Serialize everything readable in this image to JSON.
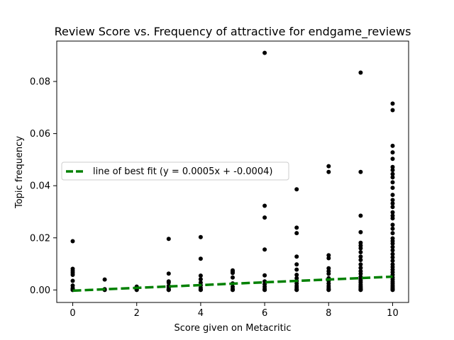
{
  "chart_data": {
    "type": "scatter",
    "title": "Review Score vs. Frequency of attractive for endgame_reviews",
    "xlabel": "Score given on Metacritic",
    "ylabel": "Topic frequency",
    "xlim": [
      -0.5,
      10.5
    ],
    "ylim": [
      -0.0048,
      0.0955
    ],
    "xticks": [
      0,
      2,
      4,
      6,
      8,
      10
    ],
    "yticks": [
      0.0,
      0.02,
      0.04,
      0.06,
      0.08
    ],
    "xtick_labels": [
      "0",
      "2",
      "4",
      "6",
      "8",
      "10"
    ],
    "ytick_labels": [
      "0.00",
      "0.02",
      "0.04",
      "0.06",
      "0.08"
    ],
    "grid": false,
    "legend_position": "center-left",
    "colors": {
      "points": "#000000",
      "fit_line": "#008000"
    },
    "series": [
      {
        "name": "",
        "kind": "scatter",
        "points": [
          [
            0,
            0.0187
          ],
          [
            0,
            0.0081
          ],
          [
            0,
            0.0073
          ],
          [
            0,
            0.0066
          ],
          [
            0,
            0.0058
          ],
          [
            0,
            0.0035
          ],
          [
            0,
            0.0017
          ],
          [
            0,
            0.0007
          ],
          [
            0,
            0.0002
          ],
          [
            0,
            0.0
          ],
          [
            0,
            0.0
          ],
          [
            0,
            0.0
          ],
          [
            1,
            0.004
          ],
          [
            1,
            0.0003
          ],
          [
            1,
            0.0
          ],
          [
            1,
            0.0
          ],
          [
            2,
            0.0013
          ],
          [
            2,
            0.0006
          ],
          [
            2,
            0.0002
          ],
          [
            2,
            0.0
          ],
          [
            2,
            0.0
          ],
          [
            3,
            0.0196
          ],
          [
            3,
            0.0063
          ],
          [
            3,
            0.0033
          ],
          [
            3,
            0.0028
          ],
          [
            3,
            0.0015
          ],
          [
            3,
            0.0008
          ],
          [
            3,
            0.0002
          ],
          [
            3,
            0.0
          ],
          [
            3,
            0.0
          ],
          [
            3,
            0.0
          ],
          [
            4,
            0.0203
          ],
          [
            4,
            0.012
          ],
          [
            4,
            0.0055
          ],
          [
            4,
            0.0041
          ],
          [
            4,
            0.0028
          ],
          [
            4,
            0.0018
          ],
          [
            4,
            0.0008
          ],
          [
            4,
            0.0002
          ],
          [
            4,
            0.0
          ],
          [
            4,
            0.0
          ],
          [
            5,
            0.0075
          ],
          [
            5,
            0.007
          ],
          [
            5,
            0.0065
          ],
          [
            5,
            0.0048
          ],
          [
            5,
            0.0025
          ],
          [
            5,
            0.0012
          ],
          [
            5,
            0.0004
          ],
          [
            5,
            0.0
          ],
          [
            5,
            0.0
          ],
          [
            6,
            0.091
          ],
          [
            6,
            0.0323
          ],
          [
            6,
            0.0278
          ],
          [
            6,
            0.0155
          ],
          [
            6,
            0.0056
          ],
          [
            6,
            0.0033
          ],
          [
            6,
            0.0022
          ],
          [
            6,
            0.0012
          ],
          [
            6,
            0.0004
          ],
          [
            6,
            0.0
          ],
          [
            6,
            0.0
          ],
          [
            7,
            0.0386
          ],
          [
            7,
            0.0239
          ],
          [
            7,
            0.0218
          ],
          [
            7,
            0.0128
          ],
          [
            7,
            0.0098
          ],
          [
            7,
            0.0078
          ],
          [
            7,
            0.0058
          ],
          [
            7,
            0.0045
          ],
          [
            7,
            0.0034
          ],
          [
            7,
            0.0025
          ],
          [
            7,
            0.0015
          ],
          [
            7,
            0.0008
          ],
          [
            7,
            0.0002
          ],
          [
            7,
            0.0
          ],
          [
            7,
            0.0
          ],
          [
            8,
            0.0475
          ],
          [
            8,
            0.0453
          ],
          [
            8,
            0.0133
          ],
          [
            8,
            0.0122
          ],
          [
            8,
            0.0083
          ],
          [
            8,
            0.0072
          ],
          [
            8,
            0.0062
          ],
          [
            8,
            0.0045
          ],
          [
            8,
            0.0035
          ],
          [
            8,
            0.0025
          ],
          [
            8,
            0.0015
          ],
          [
            8,
            0.0008
          ],
          [
            8,
            0.0003
          ],
          [
            8,
            0.0
          ],
          [
            8,
            0.0
          ],
          [
            9,
            0.0834
          ],
          [
            9,
            0.0453
          ],
          [
            9,
            0.0285
          ],
          [
            9,
            0.0222
          ],
          [
            9,
            0.0181
          ],
          [
            9,
            0.017
          ],
          [
            9,
            0.016
          ],
          [
            9,
            0.0145
          ],
          [
            9,
            0.0128
          ],
          [
            9,
            0.0115
          ],
          [
            9,
            0.0098
          ],
          [
            9,
            0.0085
          ],
          [
            9,
            0.0072
          ],
          [
            9,
            0.0062
          ],
          [
            9,
            0.005
          ],
          [
            9,
            0.0042
          ],
          [
            9,
            0.0035
          ],
          [
            9,
            0.0028
          ],
          [
            9,
            0.002
          ],
          [
            9,
            0.0014
          ],
          [
            9,
            0.0009
          ],
          [
            9,
            0.0005
          ],
          [
            9,
            0.0002
          ],
          [
            9,
            0.0
          ],
          [
            9,
            0.0
          ],
          [
            10,
            0.0715
          ],
          [
            10,
            0.069
          ],
          [
            10,
            0.0553
          ],
          [
            10,
            0.0528
          ],
          [
            10,
            0.0503
          ],
          [
            10,
            0.0472
          ],
          [
            10,
            0.046
          ],
          [
            10,
            0.0445
          ],
          [
            10,
            0.0432
          ],
          [
            10,
            0.0413
          ],
          [
            10,
            0.0392
          ],
          [
            10,
            0.0365
          ],
          [
            10,
            0.0345
          ],
          [
            10,
            0.0332
          ],
          [
            10,
            0.0318
          ],
          [
            10,
            0.0298
          ],
          [
            10,
            0.0285
          ],
          [
            10,
            0.0275
          ],
          [
            10,
            0.025
          ],
          [
            10,
            0.0235
          ],
          [
            10,
            0.0218
          ],
          [
            10,
            0.0198
          ],
          [
            10,
            0.0188
          ],
          [
            10,
            0.0178
          ],
          [
            10,
            0.0165
          ],
          [
            10,
            0.0152
          ],
          [
            10,
            0.0138
          ],
          [
            10,
            0.0125
          ],
          [
            10,
            0.0112
          ],
          [
            10,
            0.0098
          ],
          [
            10,
            0.0088
          ],
          [
            10,
            0.0078
          ],
          [
            10,
            0.0068
          ],
          [
            10,
            0.0058
          ],
          [
            10,
            0.0048
          ],
          [
            10,
            0.004
          ],
          [
            10,
            0.0032
          ],
          [
            10,
            0.0025
          ],
          [
            10,
            0.0018
          ],
          [
            10,
            0.0012
          ],
          [
            10,
            0.0007
          ],
          [
            10,
            0.0003
          ],
          [
            10,
            0.0
          ],
          [
            10,
            0.0
          ]
        ]
      },
      {
        "name": "line of best fit (y = 0.0005x + -0.0004)",
        "kind": "line",
        "x": [
          0,
          10
        ],
        "y": [
          -0.0003,
          0.0051
        ]
      }
    ]
  }
}
